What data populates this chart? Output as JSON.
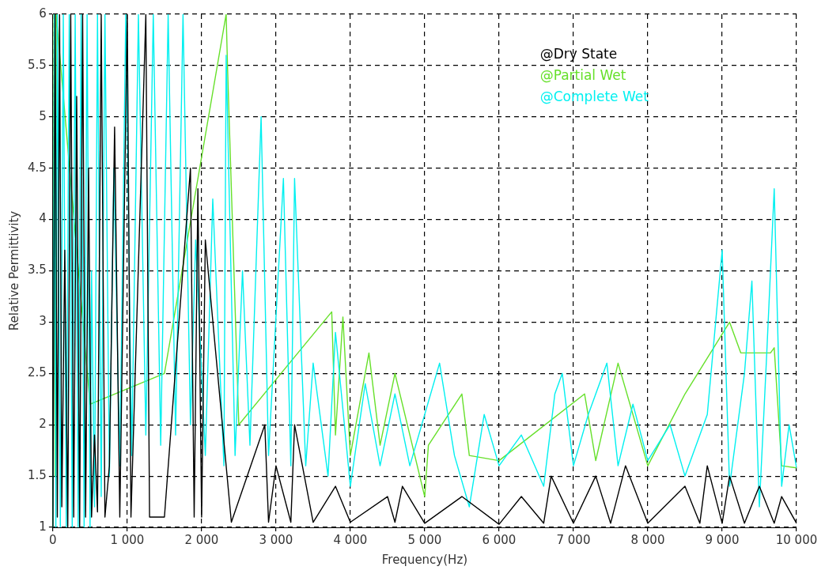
{
  "chart_data": {
    "type": "line",
    "xlabel": "Frequency(Hz)",
    "ylabel": "Relative Permittivity",
    "xlim": [
      0,
      10000
    ],
    "ylim": [
      1,
      6
    ],
    "xticks": [
      0,
      {
        "value": 1000,
        "label": "1 000"
      },
      {
        "value": 2000,
        "label": "2 000"
      },
      {
        "value": 3000,
        "label": "3 000"
      },
      {
        "value": 4000,
        "label": "4 000"
      },
      {
        "value": 5000,
        "label": "5 000"
      },
      {
        "value": 6000,
        "label": "6 000"
      },
      {
        "value": 7000,
        "label": "7 000"
      },
      {
        "value": 8000,
        "label": "8 000"
      },
      {
        "value": 9000,
        "label": "9 000"
      },
      {
        "value": 10000,
        "label": "10 000"
      }
    ],
    "yticks": [
      1,
      1.5,
      2,
      2.5,
      3,
      3.5,
      4,
      4.5,
      5,
      5.5,
      6
    ],
    "grid": true,
    "line_style": "solid",
    "marker": "none",
    "legend": "top right",
    "series": [
      {
        "name": "@Dry State",
        "color": "#000000",
        "x": [
          0,
          30,
          60,
          90,
          120,
          160,
          200,
          240,
          280,
          320,
          360,
          400,
          440,
          480,
          520,
          560,
          600,
          650,
          700,
          760,
          830,
          900,
          1000,
          1050,
          1250,
          1300,
          1500,
          1850,
          1900,
          1950,
          2000,
          2050,
          2400,
          2850,
          2900,
          3000,
          3200,
          3250,
          3500,
          3800,
          4000,
          4500,
          4600,
          4700,
          5000,
          5500,
          6000,
          6300,
          6600,
          6700,
          7000,
          7300,
          7500,
          7700,
          8000,
          8500,
          8700,
          8800,
          9000,
          9100,
          9300,
          9500,
          9700,
          9800,
          10000
        ],
        "values": [
          1,
          6,
          1.1,
          6,
          1.2,
          3.7,
          1,
          6,
          1.1,
          5.2,
          1,
          6,
          1.1,
          4.5,
          1.1,
          1.9,
          1.15,
          6,
          1.1,
          1.6,
          4.9,
          1.1,
          6,
          1.1,
          6,
          1.1,
          1.1,
          4.5,
          1.1,
          4.3,
          1.1,
          3.8,
          1.05,
          2.0,
          1.05,
          1.6,
          1.05,
          2.0,
          1.05,
          1.4,
          1.05,
          1.3,
          1.05,
          1.4,
          1.04,
          1.3,
          1.03,
          1.3,
          1.04,
          1.5,
          1.04,
          1.5,
          1.04,
          1.6,
          1.04,
          1.4,
          1.04,
          1.6,
          1.04,
          1.5,
          1.04,
          1.4,
          1.04,
          1.3,
          1.04
        ]
      },
      {
        "name": "@Partial Wet",
        "color": "#66e02a",
        "x": [
          0,
          15,
          30,
          45,
          500,
          1500,
          2330,
          2350,
          2500,
          3750,
          3800,
          3900,
          4000,
          4250,
          4400,
          4600,
          5000,
          5050,
          5500,
          5600,
          6000,
          7150,
          7300,
          7600,
          8000,
          8500,
          9100,
          9250,
          9650,
          9700,
          9800,
          10000
        ],
        "values": [
          1,
          6,
          1.5,
          6,
          2.2,
          2.5,
          6,
          5.45,
          2.0,
          3.1,
          1.9,
          3.05,
          1.7,
          2.7,
          1.8,
          2.5,
          1.3,
          1.8,
          2.3,
          1.7,
          1.65,
          2.3,
          1.65,
          2.6,
          1.6,
          2.3,
          3.0,
          2.7,
          2.7,
          2.75,
          1.6,
          1.58
        ]
      },
      {
        "name": "@Complete Wet",
        "color": "#00f0f0",
        "x": [
          0,
          20,
          40,
          60,
          100,
          140,
          180,
          220,
          260,
          300,
          340,
          380,
          420,
          460,
          500,
          520,
          560,
          600,
          650,
          700,
          760,
          820,
          900,
          980,
          1060,
          1150,
          1250,
          1350,
          1450,
          1550,
          1650,
          1750,
          1850,
          1920,
          2050,
          2150,
          2300,
          2330,
          2450,
          2550,
          2650,
          2800,
          2900,
          3100,
          3200,
          3250,
          3400,
          3500,
          3700,
          3800,
          4000,
          4200,
          4400,
          4600,
          4800,
          5200,
          5400,
          5600,
          5800,
          6000,
          6300,
          6600,
          6750,
          6850,
          7000,
          7200,
          7450,
          7600,
          7800,
          8000,
          8300,
          8500,
          8800,
          9000,
          9100,
          9300,
          9400,
          9500,
          9600,
          9700,
          9800,
          9900,
          10000
        ],
        "values": [
          1,
          6,
          1,
          6,
          1,
          6,
          1,
          6,
          1,
          6,
          1,
          6,
          1,
          6,
          1,
          3.5,
          1.2,
          6,
          1.3,
          6,
          1.5,
          4.5,
          1.6,
          6,
          1.7,
          6,
          1.9,
          6,
          1.8,
          6,
          1.9,
          6,
          2.0,
          3.8,
          1.7,
          4.2,
          1.6,
          5.6,
          1.7,
          3.5,
          1.8,
          5.0,
          1.7,
          4.4,
          1.6,
          4.4,
          1.6,
          2.6,
          1.5,
          2.9,
          1.4,
          2.4,
          1.6,
          2.3,
          1.6,
          2.6,
          1.7,
          1.2,
          2.1,
          1.6,
          1.9,
          1.4,
          2.3,
          2.5,
          1.6,
          2.1,
          2.6,
          1.6,
          2.2,
          1.65,
          2.0,
          1.5,
          2.1,
          3.7,
          1.4,
          2.5,
          3.4,
          1.2,
          2.7,
          4.3,
          1.4,
          2.0,
          1.58
        ]
      }
    ]
  }
}
